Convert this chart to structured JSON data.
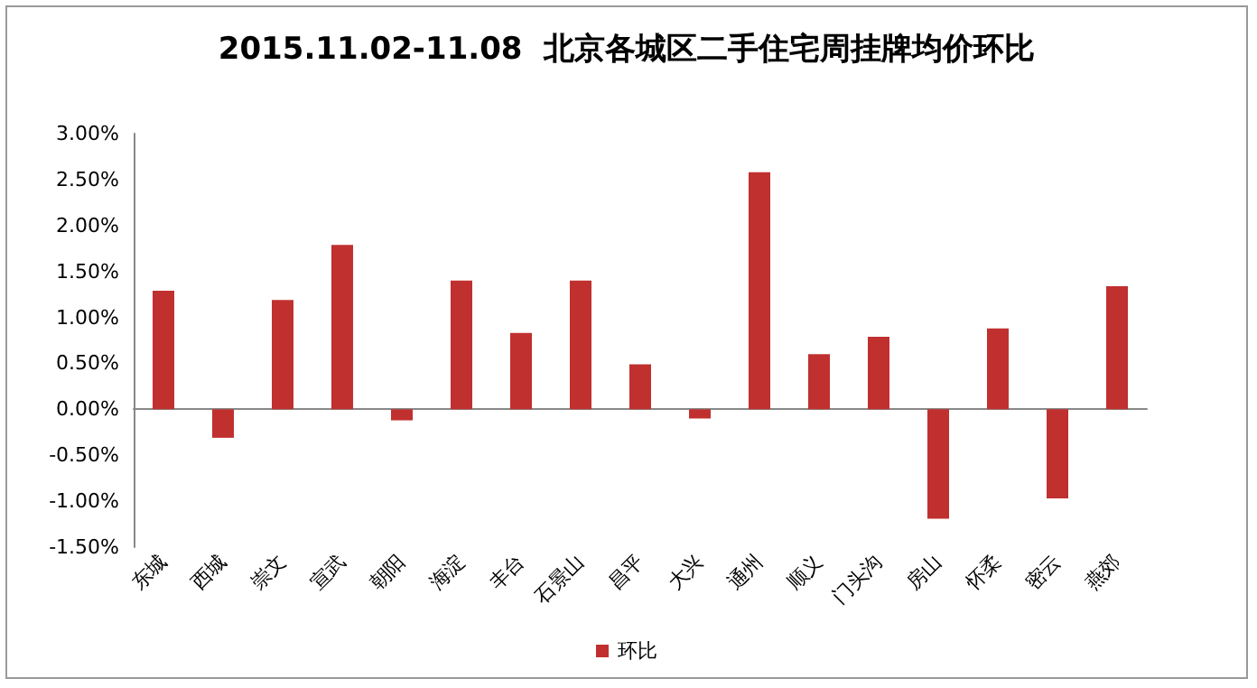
{
  "chart_data": {
    "type": "bar",
    "title": "2015.11.02-11.08  北京各城区二手住宅周挂牌均价环比",
    "categories": [
      "东城",
      "西城",
      "崇文",
      "宣武",
      "朝阳",
      "海淀",
      "丰台",
      "石景山",
      "昌平",
      "大兴",
      "通州",
      "顺义",
      "门头沟",
      "房山",
      "怀柔",
      "密云",
      "燕郊"
    ],
    "series": [
      {
        "name": "环比",
        "color": "#c0302f",
        "values": [
          1.29,
          -0.31,
          1.19,
          1.79,
          -0.12,
          1.4,
          0.83,
          1.4,
          0.49,
          -0.1,
          2.58,
          0.6,
          0.79,
          -1.19,
          0.88,
          -0.97,
          1.34
        ]
      }
    ],
    "ylim": [
      -1.5,
      3
    ],
    "yticks": [
      {
        "value": -1.5,
        "label": "-1.50%"
      },
      {
        "value": -1,
        "label": "-1.00%"
      },
      {
        "value": -0.5,
        "label": "-0.50%"
      },
      {
        "value": 0,
        "label": "0.00%"
      },
      {
        "value": 0.5,
        "label": "0.50%"
      },
      {
        "value": 1,
        "label": "1.00%"
      },
      {
        "value": 1.5,
        "label": "1.50%"
      },
      {
        "value": 2,
        "label": "2.00%"
      },
      {
        "value": 2.5,
        "label": "2.50%"
      },
      {
        "value": 3,
        "label": "3.00%"
      }
    ],
    "legend": "bottom"
  }
}
